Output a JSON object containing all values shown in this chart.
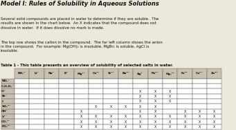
{
  "title": "Model I: Rules of Solubility in Aqueous Solutions",
  "paragraph1": "Several solid compounds are placed in water to determine if they are soluble.  The\nresults are shown in the chart below.  An X indicates that the compound does not\ndissolve in water.  If it does dissolve no mark is made.",
  "paragraph2": "The top row shows the cation in the compound.  The far left column shows the anion\nin the compound.  For example: Mg(OH)₂ is insoluble, MgBr₂ is soluble, AgCl is\ninsoluble.",
  "table_title": "Table 1 - This table presents an overview of solubility of selected salts in water.",
  "col_headers": [
    "NH₄⁺",
    "Li⁺",
    "Na⁺",
    "K⁺",
    "Mg²⁺",
    "Ca²⁺",
    "Sr²⁺",
    "Ba²⁺",
    "Ag⁺",
    "Pb²⁺",
    "Hg₂²⁺",
    "Fe³⁺",
    "Cu²⁺",
    "Zn²⁺"
  ],
  "row_headers": [
    "NO₃⁻",
    "C₂H₃O₂⁻",
    "Cl⁻",
    "Br⁻",
    "I⁻",
    "SO₄²⁻",
    "OH⁻",
    "S²⁻",
    "CO₃²⁻",
    "PO₄³⁻"
  ],
  "data": [
    [
      0,
      0,
      0,
      0,
      0,
      0,
      0,
      0,
      0,
      0,
      0,
      0,
      0,
      0
    ],
    [
      0,
      0,
      0,
      0,
      0,
      0,
      0,
      0,
      0,
      0,
      0,
      0,
      0,
      0
    ],
    [
      0,
      0,
      0,
      0,
      0,
      0,
      0,
      0,
      1,
      1,
      1,
      0,
      0,
      0
    ],
    [
      0,
      0,
      0,
      0,
      0,
      0,
      0,
      0,
      1,
      1,
      1,
      0,
      0,
      0
    ],
    [
      0,
      0,
      0,
      0,
      0,
      0,
      0,
      0,
      1,
      1,
      1,
      0,
      0,
      0
    ],
    [
      0,
      0,
      0,
      0,
      0,
      1,
      1,
      1,
      1,
      1,
      0,
      0,
      0,
      0
    ],
    [
      0,
      0,
      0,
      0,
      1,
      0,
      0,
      0,
      1,
      1,
      0,
      1,
      1,
      1
    ],
    [
      0,
      0,
      0,
      0,
      1,
      1,
      1,
      1,
      1,
      1,
      1,
      1,
      1,
      1
    ],
    [
      0,
      0,
      0,
      0,
      1,
      1,
      1,
      1,
      1,
      1,
      1,
      1,
      1,
      1
    ],
    [
      0,
      0,
      0,
      0,
      1,
      1,
      1,
      1,
      1,
      1,
      1,
      1,
      1,
      1
    ]
  ],
  "bg_color": "#ede8dc",
  "table_bg": "#ffffff",
  "header_bg": "#c8c0b0",
  "grid_color": "#666666",
  "text_color": "#111111",
  "x_color": "#111111",
  "title_fontsize": 6.0,
  "body_fontsize": 4.0,
  "table_fontsize": 3.4,
  "header_fontsize": 3.2
}
